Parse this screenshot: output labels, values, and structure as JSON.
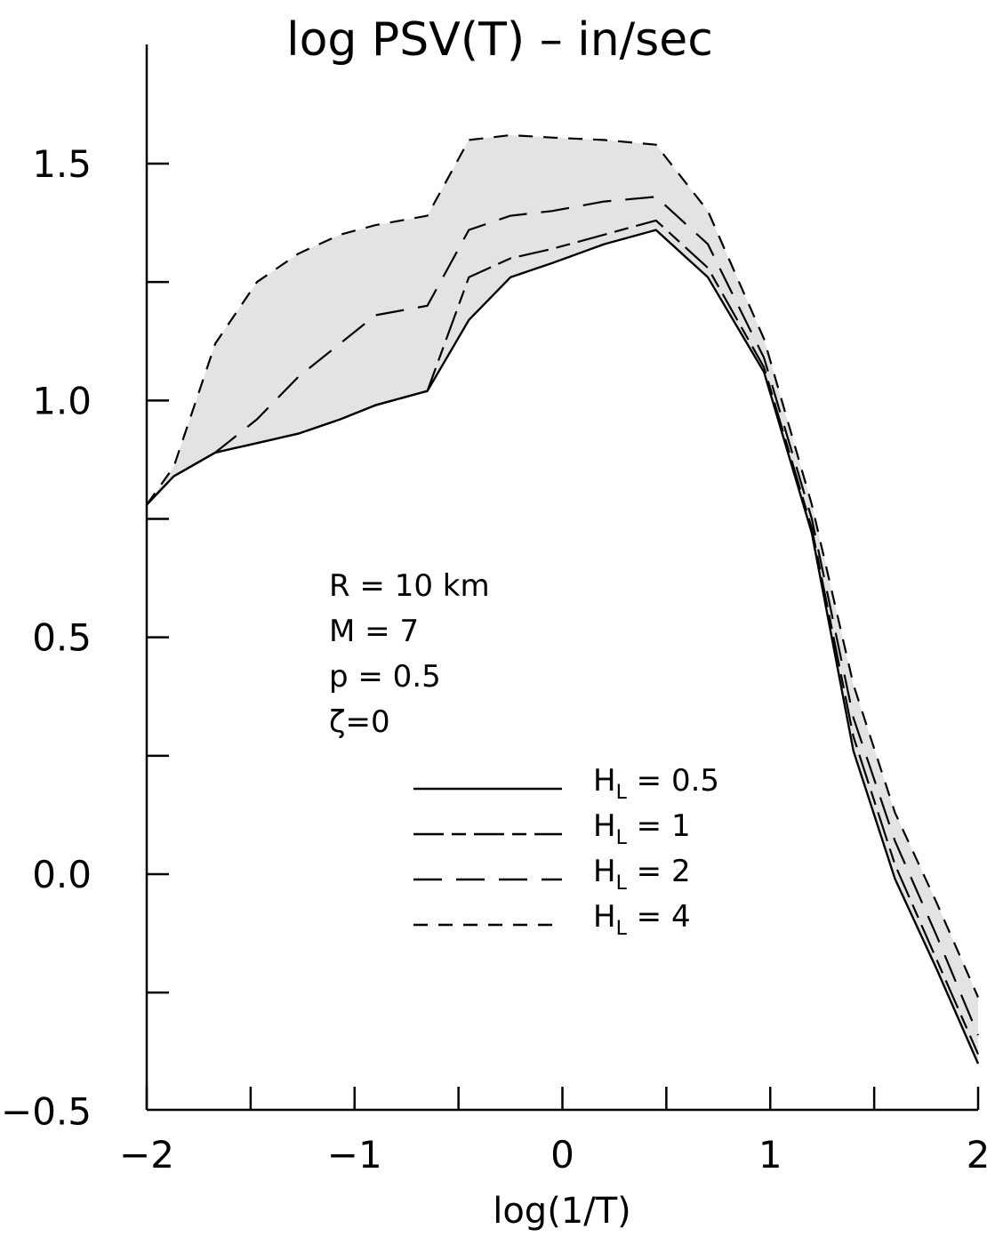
{
  "chart_data": {
    "type": "line",
    "title": "log  PSV(T)  –  in/sec",
    "xlabel": "log(1/T)",
    "ylabel": "",
    "xlim": [
      -2,
      2
    ],
    "ylim": [
      -0.5,
      1.5
    ],
    "x_ticks": [
      -2,
      -1.5,
      -1,
      -0.5,
      0,
      0.5,
      1,
      1.5,
      2
    ],
    "x_tick_labels": [
      {
        "value": -2,
        "label": "−2"
      },
      {
        "value": -1,
        "label": "−1"
      },
      {
        "value": 0,
        "label": "0"
      },
      {
        "value": 1,
        "label": "1"
      },
      {
        "value": 2,
        "label": "2"
      }
    ],
    "y_ticks": [
      -0.25,
      0,
      0.25,
      0.5,
      0.75,
      1.0,
      1.25,
      1.5
    ],
    "y_tick_labels": [
      {
        "value": -0.5,
        "label": "−0.5"
      },
      {
        "value": 0.0,
        "label": "0.0"
      },
      {
        "value": 0.5,
        "label": "0.5"
      },
      {
        "value": 1.0,
        "label": "1.0"
      },
      {
        "value": 1.5,
        "label": "1.5"
      }
    ],
    "grid": false,
    "annotations": [
      "R  =  10  km",
      "M  =  7",
      "p  =  0.5",
      "ζ=0"
    ],
    "shaded_band": {
      "description_lower": "H_L = 0.5",
      "description_upper": "H_L = 4",
      "color": "#e3e3e3"
    },
    "legend_position": "center",
    "series": [
      {
        "name": "H_L = 0.5",
        "label_main": "H",
        "label_sub": "L",
        "label_rest": "  =  0.5",
        "dash": "solid",
        "x": [
          -2.0,
          -1.87,
          -1.67,
          -1.47,
          -1.27,
          -1.07,
          -0.9,
          -0.65,
          -0.45,
          -0.25,
          -0.05,
          0.2,
          0.45,
          0.7,
          0.97,
          1.2,
          1.4,
          1.6,
          1.8,
          2.0
        ],
        "y": [
          0.78,
          0.84,
          0.89,
          0.91,
          0.93,
          0.96,
          0.99,
          1.02,
          1.17,
          1.26,
          1.29,
          1.33,
          1.36,
          1.26,
          1.06,
          0.72,
          0.26,
          -0.01,
          -0.2,
          -0.4
        ]
      },
      {
        "name": "H_L = 1",
        "label_main": "H",
        "label_sub": "L",
        "label_rest": "  =  1",
        "dash": "long-short",
        "x": [
          -2.0,
          -1.87,
          -1.67,
          -1.47,
          -1.27,
          -1.07,
          -0.9,
          -0.65,
          -0.45,
          -0.25,
          -0.05,
          0.2,
          0.45,
          0.7,
          0.97,
          1.2,
          1.4,
          1.6,
          1.8,
          2.0
        ],
        "y": [
          0.78,
          0.84,
          0.89,
          0.91,
          0.93,
          0.96,
          0.99,
          1.02,
          1.26,
          1.3,
          1.32,
          1.35,
          1.38,
          1.28,
          1.07,
          0.73,
          0.29,
          0.02,
          -0.18,
          -0.38
        ]
      },
      {
        "name": "H_L = 2",
        "label_main": "H",
        "label_sub": "L",
        "label_rest": "  =  2",
        "dash": "long",
        "x": [
          -2.0,
          -1.87,
          -1.67,
          -1.47,
          -1.27,
          -1.07,
          -0.9,
          -0.65,
          -0.45,
          -0.25,
          -0.05,
          0.2,
          0.45,
          0.7,
          0.97,
          1.2,
          1.4,
          1.6,
          1.8,
          2.0
        ],
        "y": [
          0.78,
          0.84,
          0.89,
          0.96,
          1.05,
          1.12,
          1.18,
          1.2,
          1.36,
          1.39,
          1.4,
          1.42,
          1.43,
          1.33,
          1.09,
          0.75,
          0.33,
          0.07,
          -0.13,
          -0.34
        ]
      },
      {
        "name": "H_L = 4",
        "label_main": "H",
        "label_sub": "L",
        "label_rest": "  =  4",
        "dash": "short",
        "x": [
          -2.0,
          -1.87,
          -1.67,
          -1.47,
          -1.27,
          -1.07,
          -0.9,
          -0.65,
          -0.45,
          -0.25,
          -0.05,
          0.2,
          0.45,
          0.7,
          0.97,
          1.2,
          1.4,
          1.6,
          1.8,
          2.0
        ],
        "y": [
          0.78,
          0.86,
          1.12,
          1.25,
          1.31,
          1.35,
          1.37,
          1.39,
          1.55,
          1.56,
          1.555,
          1.55,
          1.54,
          1.4,
          1.13,
          0.78,
          0.4,
          0.13,
          -0.06,
          -0.26
        ]
      }
    ]
  }
}
